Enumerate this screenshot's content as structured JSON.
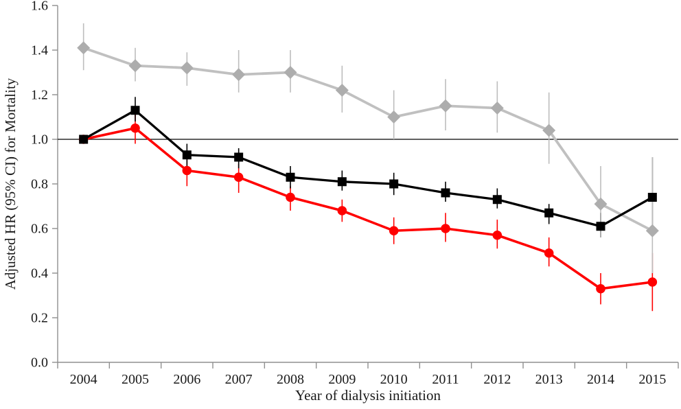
{
  "figure": {
    "background": "#ffffff"
  },
  "colors": {
    "axis": "#8f8f8f",
    "text": "#1a1a1a",
    "reference_line": "#000000",
    "gray_series": "#c0c0c0",
    "gray_marker": "#adadad",
    "gray_error": "#bdbdbd",
    "black_series": "#000000",
    "red_series": "#ff0000"
  },
  "chart_data": {
    "type": "line",
    "title": "",
    "xlabel": "Year of dialysis initiation",
    "ylabel": "Adjusted HR (95% CI) for Mortality",
    "categories": [
      "2004",
      "2005",
      "2006",
      "2007",
      "2008",
      "2009",
      "2010",
      "2011",
      "2012",
      "2013",
      "2014",
      "2015"
    ],
    "ylim": [
      0.0,
      1.6
    ],
    "ytick_step": 0.2,
    "ytick_labels": [
      "0.0",
      "0.2",
      "0.4",
      "0.6",
      "0.8",
      "1.0",
      "1.2",
      "1.4",
      "1.6"
    ],
    "grid": false,
    "legend": "none",
    "reference_line": 1.0,
    "error_bars": "95% CI, vertical lines without caps",
    "series": [
      {
        "name": "gray-diamond-series",
        "marker": "diamond",
        "color": "#c0c0c0",
        "marker_color": "#adadad",
        "error_color": "#bdbdbd",
        "values": [
          1.41,
          1.33,
          1.32,
          1.29,
          1.3,
          1.22,
          1.1,
          1.15,
          1.14,
          1.04,
          0.71,
          0.59
        ],
        "ci_low": [
          1.31,
          1.26,
          1.24,
          1.21,
          1.21,
          1.12,
          1.0,
          1.04,
          1.03,
          0.89,
          0.56,
          0.4
        ],
        "ci_high": [
          1.52,
          1.41,
          1.39,
          1.4,
          1.4,
          1.33,
          1.22,
          1.27,
          1.26,
          1.21,
          0.88,
          0.92
        ]
      },
      {
        "name": "black-square-series",
        "marker": "square",
        "color": "#000000",
        "marker_color": "#000000",
        "error_color": "#000000",
        "values": [
          1.0,
          1.13,
          0.93,
          0.92,
          0.83,
          0.81,
          0.8,
          0.76,
          0.73,
          0.67,
          0.61,
          0.74
        ],
        "ci_low": [
          null,
          1.08,
          0.88,
          0.87,
          0.78,
          0.77,
          0.75,
          0.72,
          0.69,
          0.62,
          0.56,
          0.6
        ],
        "ci_high": [
          null,
          1.19,
          0.98,
          0.96,
          0.88,
          0.86,
          0.85,
          0.81,
          0.78,
          0.71,
          0.67,
          0.92
        ]
      },
      {
        "name": "red-circle-series",
        "marker": "circle",
        "color": "#ff0000",
        "marker_color": "#ff0000",
        "error_color": "#ff0000",
        "values": [
          1.0,
          1.05,
          0.86,
          0.83,
          0.74,
          0.68,
          0.59,
          0.6,
          0.57,
          0.49,
          0.33,
          0.36
        ],
        "ci_low": [
          null,
          0.98,
          0.79,
          0.76,
          0.68,
          0.63,
          0.53,
          0.54,
          0.51,
          0.43,
          0.26,
          0.23
        ],
        "ci_high": [
          null,
          1.14,
          0.91,
          0.89,
          0.79,
          0.73,
          0.65,
          0.67,
          0.64,
          0.56,
          0.4,
          0.49
        ]
      }
    ]
  }
}
